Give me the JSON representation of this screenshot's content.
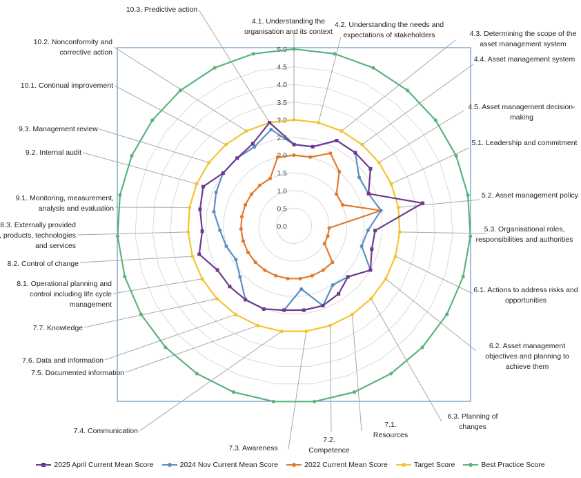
{
  "chart_data": {
    "type": "radar",
    "title": "",
    "rmin": 0,
    "rmax": 5,
    "ticks": [
      "0.0",
      "0.5",
      "1.0",
      "1.5",
      "2.0",
      "2.5",
      "3.0",
      "3.5",
      "4.0",
      "4.5",
      "5.0"
    ],
    "categories": [
      [
        "4.1. Understanding the",
        "organisation and its context"
      ],
      [
        "4.2. Understanding the needs and",
        "expectations of stakeholders"
      ],
      [
        "4.3. Determining the scope of the",
        "asset management system"
      ],
      [
        "4.4. Asset management system"
      ],
      [
        "4.5. Asset management decision-",
        "making"
      ],
      [
        "5.1.  Leadership and commitment"
      ],
      [
        "5.2. Asset management policy"
      ],
      [
        "5.3.  Organisational roles,",
        "responsibilities and authorities"
      ],
      [
        "6.1.  Actions to address risks and",
        "opportunities"
      ],
      [
        "6.2. Asset management",
        "objectives and planning to",
        "achieve them"
      ],
      [
        "6.3. Planning of",
        "changes"
      ],
      [
        "7.1.",
        "Resources"
      ],
      [
        "7.2.",
        "Competence"
      ],
      [
        "7.3.  Awareness"
      ],
      [
        "7.4. Communication"
      ],
      [
        "7.5. Documented information"
      ],
      [
        "7.6. Data and information"
      ],
      [
        "7.7. Knowledge"
      ],
      [
        "8.1.  Operational planning and",
        "control including life cycle",
        "management"
      ],
      [
        "8.2. Control of change"
      ],
      [
        "8.3. Externally provided",
        "processes, products, technologies",
        "and services"
      ],
      [
        "9.1.  Monitoring, measurement,",
        "analysis and evaluation"
      ],
      [
        "9.2. Internal audit"
      ],
      [
        "9.3. Management review"
      ],
      [
        "10.1. Continual improvement"
      ],
      [
        "10.2. Nonconformity and",
        "corrective action"
      ],
      [
        "10.3. Predictive action"
      ]
    ],
    "series": [
      {
        "name": "2025 April Current Mean Score",
        "color": "#6b3a8e",
        "marker": "square",
        "values": [
          2.3,
          2.3,
          2.7,
          2.7,
          2.7,
          2.3,
          3.7,
          2.3,
          2.3,
          2.5,
          2.1,
          2.3,
          2.4,
          2.4,
          2.4,
          2.5,
          2.5,
          2.5,
          2.5,
          2.8,
          2.6,
          2.7,
          2.8,
          2.5,
          2.5,
          2.6,
          3.0
        ]
      },
      {
        "name": "2024 Nov Current Mean Score",
        "color": "#5b8fc4",
        "marker": "circle",
        "values": [
          2.3,
          2.3,
          2.7,
          2.7,
          2.3,
          2.3,
          2.5,
          2.1,
          2.0,
          2.5,
          2.1,
          2.0,
          2.4,
          1.8,
          2.4,
          2.5,
          2.5,
          2.1,
          1.9,
          2.0,
          2.1,
          2.3,
          2.4,
          2.5,
          2.5,
          2.5,
          2.8
        ]
      },
      {
        "name": "2022 Current Mean Score",
        "color": "#e07a2f",
        "marker": "circle",
        "values": [
          2.0,
          2.0,
          2.3,
          2.0,
          1.5,
          1.5,
          2.5,
          1.0,
          1.0,
          1.0,
          1.5,
          1.5,
          1.5,
          1.5,
          1.5,
          1.5,
          1.5,
          1.5,
          1.5,
          1.5,
          1.5,
          1.5,
          1.5,
          1.5,
          1.5,
          1.5,
          2.0
        ]
      },
      {
        "name": "Target Score",
        "color": "#f4c430",
        "marker": "circle",
        "values": [
          3.0,
          3.0,
          3.0,
          3.0,
          3.0,
          3.0,
          3.0,
          3.0,
          3.0,
          3.0,
          3.0,
          3.0,
          3.0,
          3.0,
          3.0,
          3.0,
          3.0,
          3.0,
          3.0,
          3.0,
          3.0,
          3.0,
          3.0,
          3.0,
          3.0,
          3.0,
          3.0
        ]
      },
      {
        "name": "Best Practice Score",
        "color": "#5ab37e",
        "marker": "circle",
        "values": [
          5.0,
          5.0,
          5.0,
          5.0,
          5.0,
          5.0,
          5.0,
          5.0,
          5.0,
          5.0,
          5.0,
          5.0,
          5.0,
          5.0,
          5.0,
          5.0,
          5.0,
          5.0,
          5.0,
          5.0,
          5.0,
          5.0,
          5.0,
          5.0,
          5.0,
          5.0,
          5.0
        ]
      }
    ],
    "grid": true,
    "legend_position": "bottom"
  }
}
